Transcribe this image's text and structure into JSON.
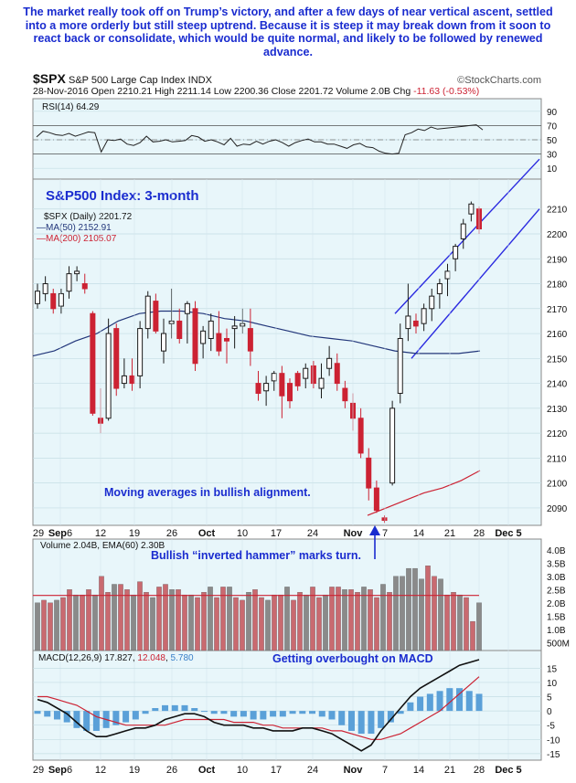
{
  "commentary": "The market really took off on Trump’s victory, and after a few days of near vertical ascent, settled into a more orderly but still steep uptrend. Because it is steep it may break down from it soon to react back or consolidate, which would be quite normal, and likely to be followed by renewed advance.",
  "header": {
    "symbol": "$SPX",
    "name": "S&P 500 Large Cap Index",
    "exchange": "INDX",
    "copyright": "©StockCharts.com",
    "date": "28-Nov-2016",
    "quote": [
      {
        "label": "Open",
        "value": "2210.21"
      },
      {
        "label": "High",
        "value": "2211.14"
      },
      {
        "label": "Low",
        "value": "2200.36"
      },
      {
        "label": "Close",
        "value": "2201.72"
      },
      {
        "label": "Volume",
        "value": "2.0B"
      },
      {
        "label": "Chg",
        "value": "-11.63 (-0.53%)"
      }
    ]
  },
  "colors": {
    "up": "#1a1a1a",
    "down": "#cc2233",
    "ma50": "#22367a",
    "ma200": "#cc2233",
    "channel": "#2a2ae0",
    "annotation": "#1a2ccf",
    "panel_bg": "#e8f6fa",
    "volume_up": "#8a8a8a",
    "volume_down": "#c96a70"
  },
  "chart_data": [
    {
      "type": "line",
      "name": "RSI",
      "legend": "RSI(14) 64.29",
      "yticks": [
        10,
        30,
        50,
        70,
        90
      ],
      "ylim": [
        0,
        100
      ],
      "values": [
        54,
        62,
        60,
        57,
        56,
        59,
        55,
        58,
        61,
        60,
        33,
        50,
        49,
        51,
        44,
        42,
        46,
        55,
        47,
        48,
        50,
        47,
        48,
        49,
        56,
        54,
        48,
        50,
        47,
        43,
        52,
        41,
        44,
        43,
        48,
        44,
        48,
        50,
        46,
        41,
        46,
        49,
        51,
        47,
        47,
        44,
        44,
        41,
        38,
        43,
        45,
        40,
        39,
        34,
        31,
        30,
        31,
        57,
        60,
        65,
        63,
        68,
        65,
        66,
        67,
        68,
        69,
        70,
        71,
        64
      ]
    },
    {
      "type": "candlestick",
      "title": "S&P500 Index: 3-month",
      "legend": [
        {
          "key": "price",
          "text": "$SPX (Daily) 2201.72"
        },
        {
          "key": "ma50",
          "text": "MA(50) 2152.91"
        },
        {
          "key": "ma200",
          "text": "MA(200) 2105.07"
        }
      ],
      "yticks": [
        2090,
        2100,
        2110,
        2120,
        2130,
        2140,
        2150,
        2160,
        2170,
        2180,
        2190,
        2200,
        2210
      ],
      "ylim": [
        2083,
        2222
      ],
      "xticks": [
        "29",
        "Sep6",
        "12",
        "19",
        "26",
        "Oct",
        "10",
        "17",
        "24",
        "Nov",
        "7",
        "14",
        "21",
        "28",
        "Dec 5"
      ],
      "candles": [
        [
          2172,
          2180,
          2170,
          2177
        ],
        [
          2176,
          2183,
          2173,
          2180
        ],
        [
          2176,
          2178,
          2168,
          2170
        ],
        [
          2171,
          2178,
          2168,
          2176
        ],
        [
          2177,
          2187,
          2174,
          2184
        ],
        [
          2184,
          2187,
          2181,
          2185
        ],
        [
          2180,
          2184,
          2176,
          2178
        ],
        [
          2168,
          2169,
          2127,
          2128
        ],
        [
          2126,
          2138,
          2120,
          2124
        ],
        [
          2126,
          2166,
          2125,
          2160
        ],
        [
          2162,
          2164,
          2135,
          2138
        ],
        [
          2140,
          2150,
          2138,
          2143
        ],
        [
          2143,
          2150,
          2137,
          2140
        ],
        [
          2143,
          2165,
          2138,
          2162
        ],
        [
          2162,
          2177,
          2158,
          2175
        ],
        [
          2173,
          2176,
          2160,
          2161
        ],
        [
          2153,
          2166,
          2148,
          2160
        ],
        [
          2164,
          2178,
          2158,
          2165
        ],
        [
          2165,
          2170,
          2156,
          2158
        ],
        [
          2168,
          2173,
          2156,
          2172
        ],
        [
          2170,
          2173,
          2145,
          2148
        ],
        [
          2156,
          2163,
          2150,
          2161
        ],
        [
          2158,
          2168,
          2153,
          2165
        ],
        [
          2160,
          2169,
          2151,
          2153
        ],
        [
          2158,
          2162,
          2148,
          2157
        ],
        [
          2162,
          2167,
          2154,
          2163
        ],
        [
          2163,
          2170,
          2160,
          2164
        ],
        [
          2162,
          2170,
          2147,
          2153
        ],
        [
          2140,
          2145,
          2133,
          2136
        ],
        [
          2137,
          2143,
          2131,
          2140
        ],
        [
          2141,
          2145,
          2137,
          2144
        ],
        [
          2144,
          2147,
          2126,
          2135
        ],
        [
          2140,
          2142,
          2130,
          2133
        ],
        [
          2144,
          2145,
          2137,
          2139
        ],
        [
          2142,
          2148,
          2138,
          2146
        ],
        [
          2147,
          2149,
          2138,
          2140
        ],
        [
          2138,
          2148,
          2134,
          2142
        ],
        [
          2146,
          2155,
          2143,
          2150
        ],
        [
          2148,
          2152,
          2137,
          2140
        ],
        [
          2138,
          2141,
          2130,
          2133
        ],
        [
          2132,
          2136,
          2121,
          2126
        ],
        [
          2126,
          2130,
          2110,
          2112
        ],
        [
          2110,
          2114,
          2093,
          2098
        ],
        [
          2098,
          2101,
          2088,
          2089
        ],
        [
          2086,
          2087,
          2084,
          2085
        ],
        [
          2100,
          2133,
          2099,
          2130
        ],
        [
          2136,
          2164,
          2132,
          2158
        ],
        [
          2162,
          2180,
          2157,
          2167
        ],
        [
          2165,
          2168,
          2160,
          2163
        ],
        [
          2164,
          2172,
          2161,
          2170
        ],
        [
          2170,
          2178,
          2165,
          2175
        ],
        [
          2176,
          2182,
          2170,
          2180
        ],
        [
          2182,
          2188,
          2175,
          2185
        ],
        [
          2190,
          2196,
          2185,
          2195
        ],
        [
          2198,
          2206,
          2194,
          2204
        ],
        [
          2208,
          2213,
          2205,
          2212
        ],
        [
          2210,
          2211,
          2200,
          2202
        ]
      ],
      "ma50": [
        2151,
        2153,
        2157,
        2160,
        2165,
        2168,
        2169,
        2169,
        2168,
        2166,
        2165,
        2163,
        2161,
        2159,
        2158,
        2157,
        2155,
        2153,
        2152,
        2152,
        2152,
        2153
      ],
      "ma200": [
        2087,
        2090,
        2093,
        2096,
        2098,
        2101,
        2105
      ]
    },
    {
      "type": "bar",
      "name": "Volume",
      "legend": "Volume 2.04B, EMA(60) 2.30B",
      "yticks": [
        "500M",
        "1.0B",
        "1.5B",
        "2.0B",
        "2.5B",
        "3.0B",
        "3.5B",
        "4.0B"
      ],
      "ylim": [
        0.2,
        4.2
      ],
      "values": [
        2.0,
        2.1,
        2.0,
        2.1,
        2.2,
        2.5,
        2.3,
        2.3,
        2.5,
        2.3,
        3.0,
        2.4,
        2.7,
        2.7,
        2.5,
        2.3,
        2.8,
        2.4,
        2.2,
        2.6,
        2.7,
        2.5,
        2.5,
        2.3,
        2.3,
        2.2,
        2.4,
        2.6,
        2.2,
        2.6,
        2.6,
        2.2,
        2.1,
        2.4,
        2.5,
        2.2,
        2.1,
        2.3,
        2.3,
        2.6,
        2.1,
        2.4,
        2.3,
        2.6,
        2.2,
        2.3,
        2.6,
        2.6,
        2.5,
        2.5,
        2.4,
        2.6,
        2.5,
        2.2,
        2.7,
        2.4,
        3.0,
        3.0,
        3.3,
        3.3,
        2.9,
        3.4,
        3.0,
        2.9,
        2.3,
        2.4,
        2.3,
        2.2,
        1.3,
        2.0
      ]
    },
    {
      "type": "line",
      "name": "MACD",
      "legend": [
        {
          "key": "macd",
          "text": "MACD(12,26,9) 17.827"
        },
        {
          "key": "signal",
          "text": "12.048"
        },
        {
          "key": "hist",
          "text": "5.780"
        }
      ],
      "yticks": [
        -15,
        -10,
        -5,
        0,
        5,
        10,
        15
      ],
      "ylim": [
        -16,
        18
      ],
      "macd": [
        4,
        3,
        1,
        -1,
        -4,
        -7,
        -9,
        -9,
        -8,
        -7,
        -6,
        -6,
        -5,
        -3,
        -2,
        -1,
        -1,
        -2,
        -4,
        -5,
        -5,
        -5,
        -6,
        -6,
        -7,
        -7,
        -7,
        -6,
        -6,
        -7,
        -8,
        -10,
        -12,
        -14,
        -12,
        -7,
        -3,
        1,
        5,
        8,
        10,
        12,
        14,
        16,
        17,
        18
      ],
      "signal": [
        5,
        5,
        4,
        3,
        2,
        0,
        -2,
        -3,
        -4,
        -5,
        -5,
        -5,
        -5,
        -5,
        -4,
        -3,
        -3,
        -3,
        -3,
        -3,
        -4,
        -4,
        -4,
        -5,
        -5,
        -6,
        -6,
        -6,
        -6,
        -6,
        -7,
        -7,
        -8,
        -9,
        -10,
        -10,
        -9,
        -8,
        -6,
        -4,
        -2,
        0,
        3,
        6,
        9,
        12
      ],
      "hist": [
        -1,
        -2,
        -3,
        -4,
        -6,
        -7,
        -7,
        -6,
        -5,
        -4,
        -3,
        -1,
        1,
        2,
        2,
        2,
        1,
        0,
        -1,
        -1,
        -2,
        -2,
        -3,
        -3,
        -2,
        -2,
        -1,
        -1,
        -1,
        -2,
        -3,
        -5,
        -7,
        -8,
        -8,
        -6,
        -4,
        -1,
        3,
        5,
        6,
        7,
        8,
        8,
        7,
        6
      ]
    }
  ],
  "annotations": {
    "moving_averages": "Moving averages in bullish alignment.",
    "hammer": "Bullish “inverted hammer” marks turn.",
    "macd": "Getting overbought on MACD"
  }
}
